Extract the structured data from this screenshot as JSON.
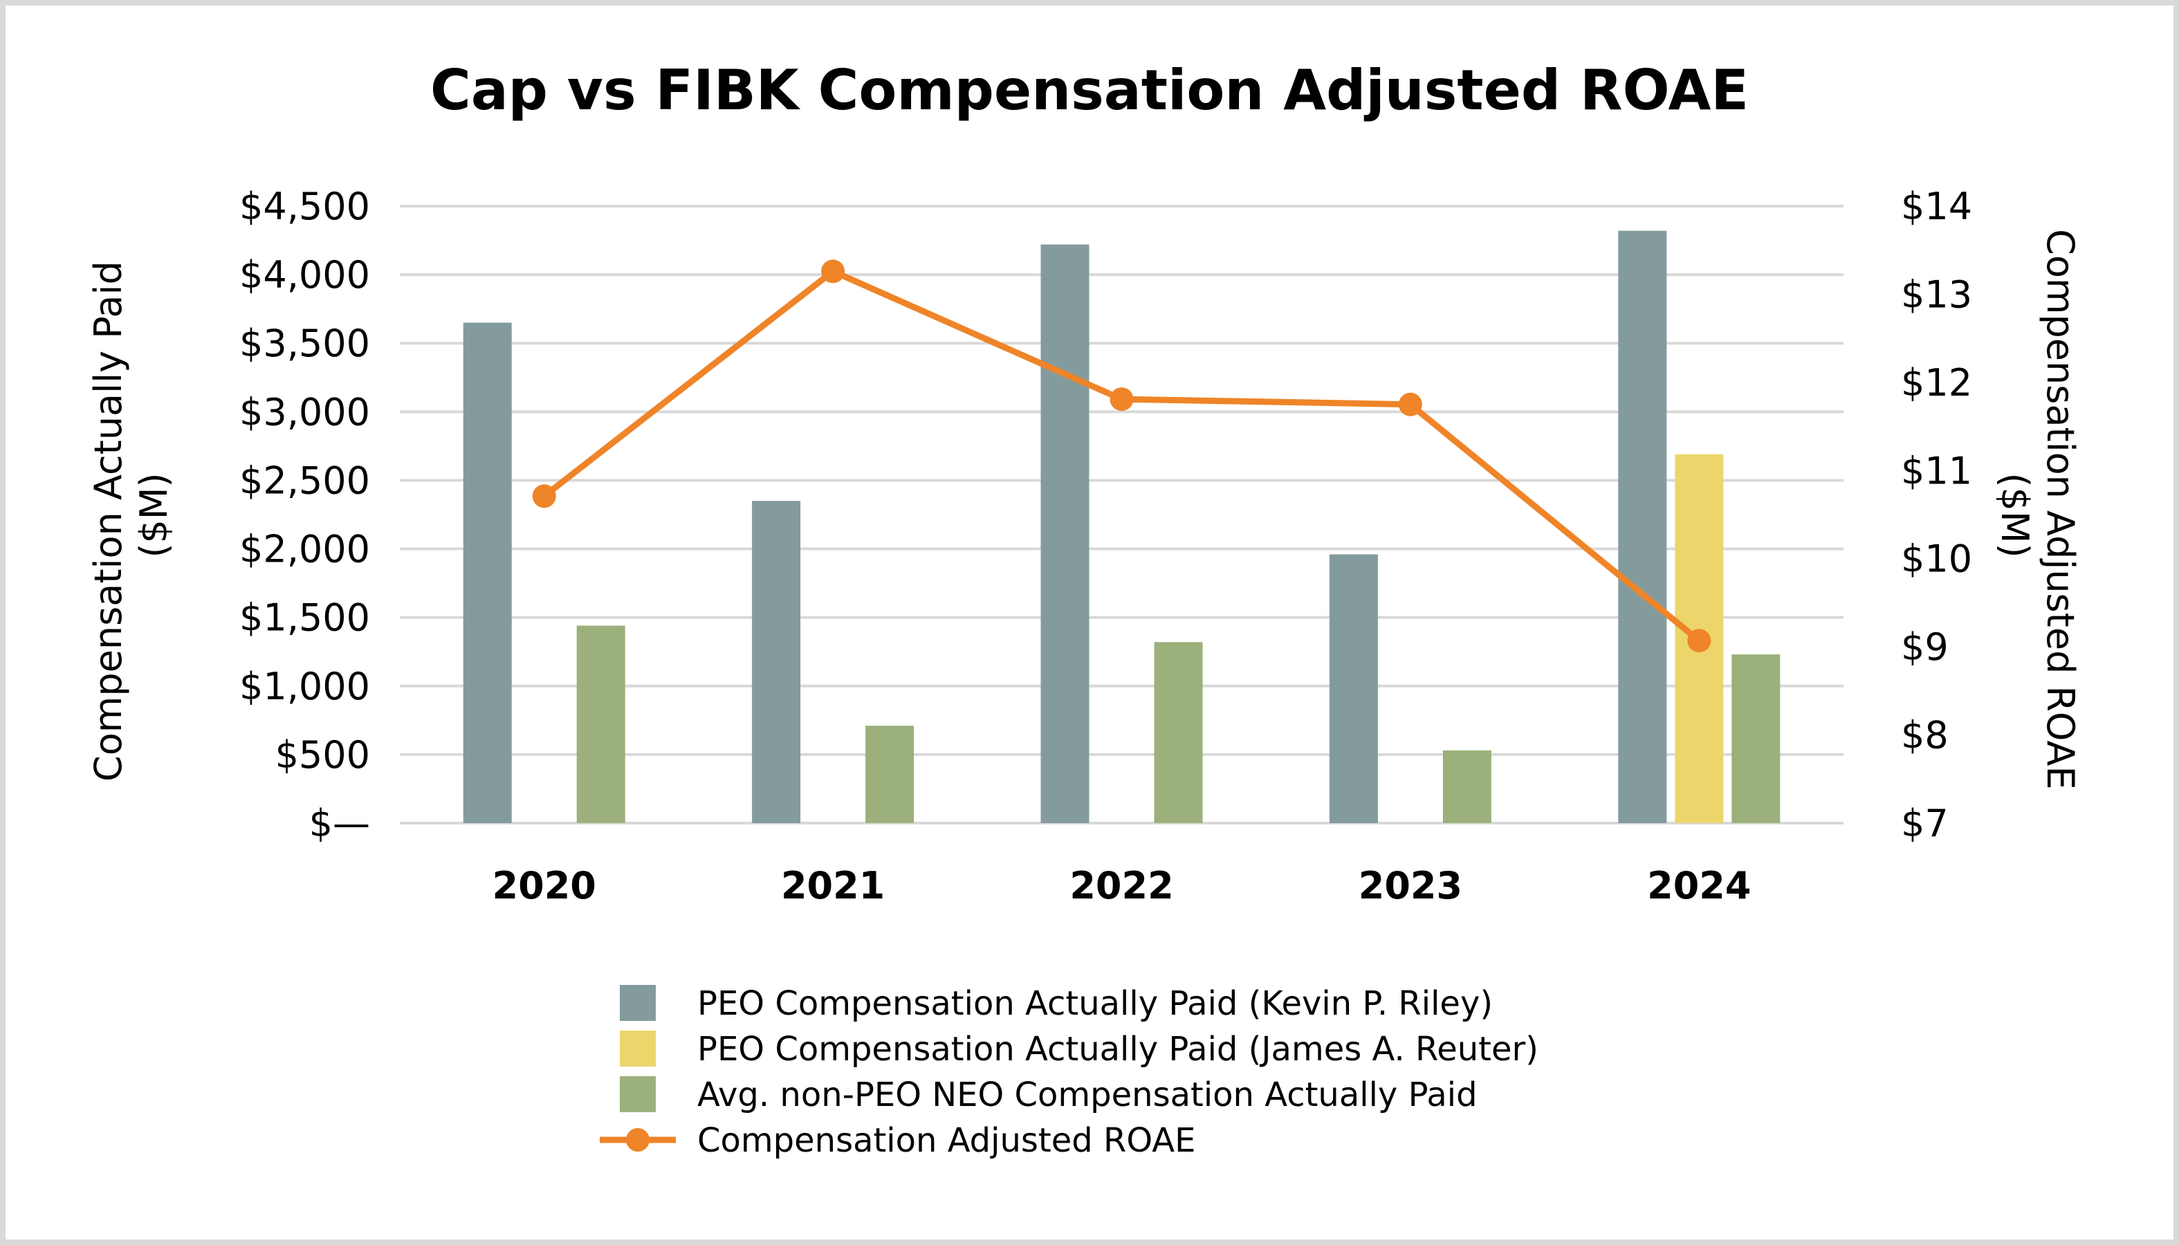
{
  "chart_data": {
    "type": "bar",
    "title": "Cap vs FIBK Compensation Adjusted ROAE",
    "categories": [
      "2020",
      "2021",
      "2022",
      "2023",
      "2024"
    ],
    "y_left": {
      "label_lines": [
        "Compensation Actually Paid",
        "($M)"
      ],
      "ylim": [
        0,
        4500
      ],
      "ticks": [
        0,
        500,
        1000,
        1500,
        2000,
        2500,
        3000,
        3500,
        4000,
        4500
      ],
      "tick_labels": [
        "$—",
        "$500",
        "$1,000",
        "$1,500",
        "$2,000",
        "$2,500",
        "$3,000",
        "$3,500",
        "$4,000",
        "$4,500"
      ]
    },
    "y_right": {
      "label_lines": [
        "Compensation Adjusted ROAE",
        "($M)"
      ],
      "ylim": [
        7,
        14
      ],
      "ticks": [
        7,
        8,
        9,
        10,
        11,
        12,
        13,
        14
      ],
      "tick_labels": [
        "$7",
        "$8",
        "$9",
        "$10",
        "$11",
        "$12",
        "$13",
        "$14"
      ]
    },
    "series": [
      {
        "name": "PEO Compensation Actually Paid (Kevin P. Riley)",
        "type": "bar",
        "axis": "left",
        "color": "#849b9e",
        "values": [
          3650,
          2350,
          4220,
          1960,
          4320
        ]
      },
      {
        "name": "PEO Compensation Actually Paid (James A. Reuter)",
        "type": "bar",
        "axis": "left",
        "color": "#ecd66c",
        "values": [
          null,
          null,
          null,
          null,
          2690
        ]
      },
      {
        "name": "Avg. non-PEO NEO Compensation Actually Paid",
        "type": "bar",
        "axis": "left",
        "color": "#9bb07b",
        "values": [
          1440,
          710,
          1320,
          530,
          1230
        ]
      },
      {
        "name": "Compensation Adjusted ROAE",
        "type": "line",
        "axis": "right",
        "color": "#ef8428",
        "values": [
          10.71,
          13.26,
          11.81,
          11.75,
          9.07
        ]
      }
    ],
    "grid": true,
    "legend_position": "bottom"
  }
}
